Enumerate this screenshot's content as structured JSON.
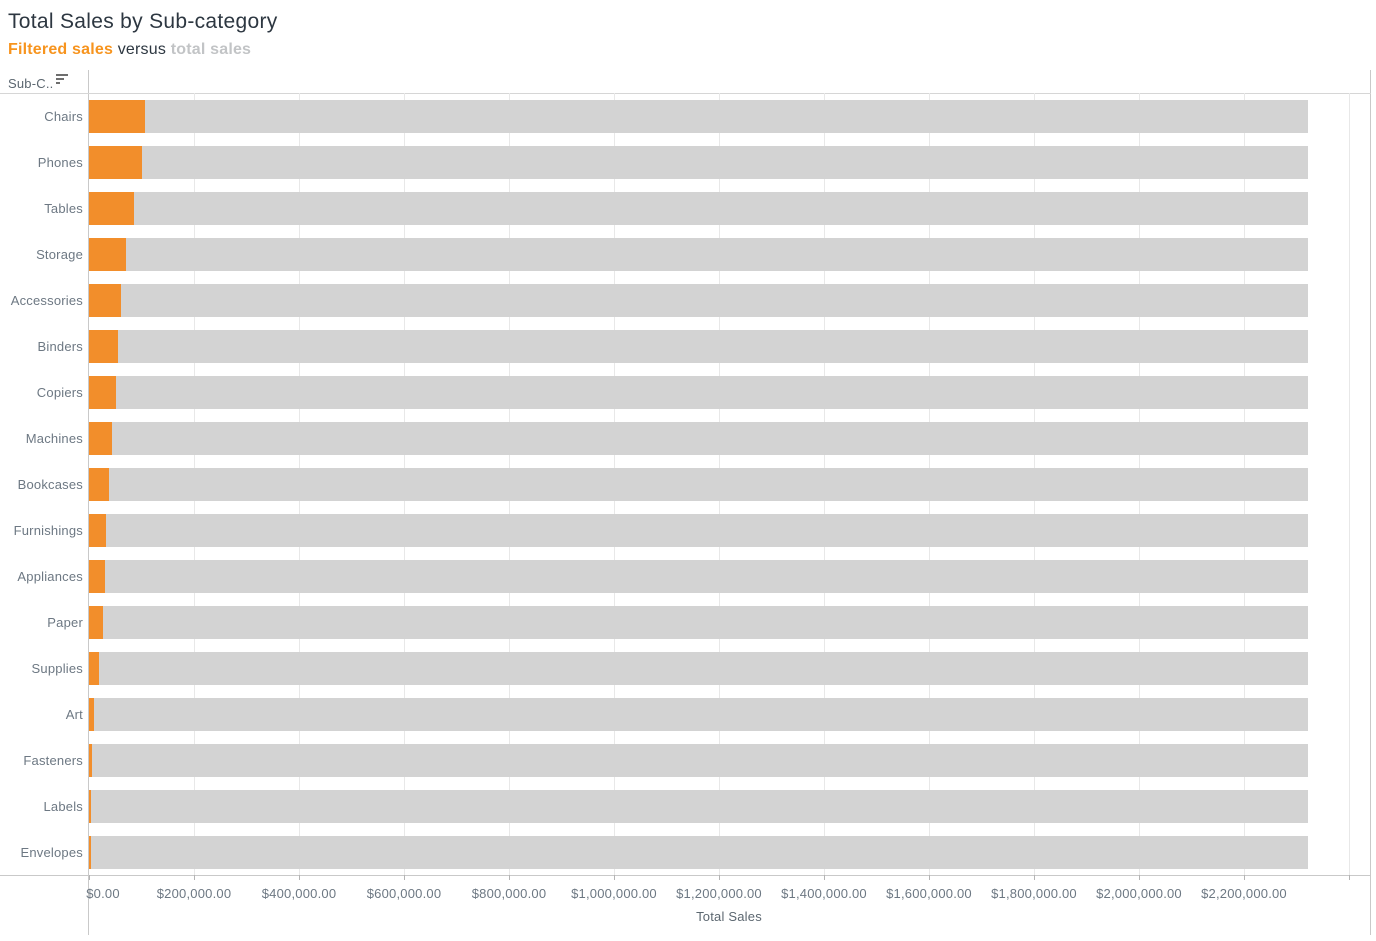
{
  "page": {
    "title": "Total Sales by Sub-category"
  },
  "subtitle": {
    "filtered_label": "Filtered sales",
    "connector": " versus ",
    "total_label": "total sales"
  },
  "table": {
    "column_header": "Sub-C..",
    "sort_icon": "sort-descending-icon"
  },
  "colors": {
    "filtered_bar": "#F28E2B",
    "total_bar": "#D3D3D3",
    "accent_text": "#F7941E",
    "muted_text": "#C2C4C6",
    "dark_text": "#2D3741",
    "label_text": "#6D7883",
    "border": "#C9C9C9",
    "gridline": "#E8E8E8"
  },
  "chart_data": {
    "type": "bar",
    "orientation": "horizontal",
    "title": "Total Sales by Sub-category",
    "subtitle": "Filtered sales versus total sales",
    "categories": [
      "Chairs",
      "Phones",
      "Tables",
      "Storage",
      "Accessories",
      "Binders",
      "Copiers",
      "Machines",
      "Bookcases",
      "Furnishings",
      "Appliances",
      "Paper",
      "Supplies",
      "Art",
      "Fasteners",
      "Labels",
      "Envelopes"
    ],
    "series": [
      {
        "name": "Filtered sales",
        "color": "#F28E2B",
        "values": [
          106000,
          100000,
          85000,
          70000,
          61000,
          56000,
          51000,
          43000,
          37500,
          33000,
          31000,
          27000,
          18500,
          10000,
          5000,
          4500,
          3200
        ]
      },
      {
        "name": "Total sales",
        "color": "#D3D3D3",
        "values": [
          2322000,
          2322000,
          2322000,
          2322000,
          2322000,
          2322000,
          2322000,
          2322000,
          2322000,
          2322000,
          2322000,
          2322000,
          2322000,
          2322000,
          2322000,
          2322000,
          2322000
        ]
      }
    ],
    "xlabel": "Total Sales",
    "ylabel": "Sub-C..",
    "x_tick_labels": [
      "$0.00",
      "$200,000.00",
      "$400,000.00",
      "$600,000.00",
      "$800,000.00",
      "$1,000,000.00",
      "$1,200,000.00",
      "$1,400,000.00",
      "$1,600,000.00",
      "$1,800,000.00",
      "$2,000,000.00",
      "$2,200,000.00"
    ],
    "x_tick_values": [
      0,
      200000,
      400000,
      600000,
      800000,
      1000000,
      1200000,
      1400000,
      1600000,
      1800000,
      2000000,
      2200000
    ],
    "x_gridline_values": [
      0,
      200000,
      400000,
      600000,
      800000,
      1000000,
      1200000,
      1400000,
      1600000,
      1800000,
      2000000,
      2200000,
      2400000
    ],
    "xlim": [
      0,
      2440000
    ],
    "grid": true,
    "legend": "none"
  }
}
